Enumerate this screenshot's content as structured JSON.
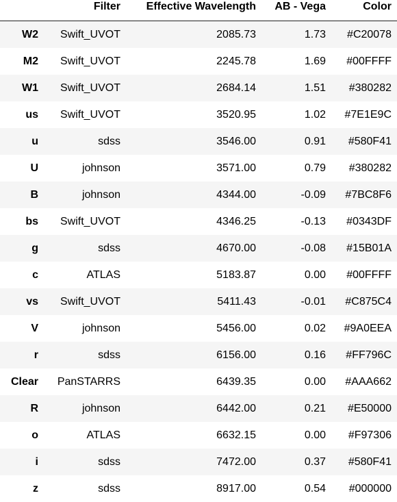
{
  "columns": [
    "",
    "Filter",
    "Effective Wavelength",
    "AB - Vega",
    "Color"
  ],
  "rows": [
    {
      "index": "W2",
      "filter": "Swift_UVOT",
      "wavelength": "2085.73",
      "ab_vega": "1.73",
      "color": "#C20078"
    },
    {
      "index": "M2",
      "filter": "Swift_UVOT",
      "wavelength": "2245.78",
      "ab_vega": "1.69",
      "color": "#00FFFF"
    },
    {
      "index": "W1",
      "filter": "Swift_UVOT",
      "wavelength": "2684.14",
      "ab_vega": "1.51",
      "color": "#380282"
    },
    {
      "index": "us",
      "filter": "Swift_UVOT",
      "wavelength": "3520.95",
      "ab_vega": "1.02",
      "color": "#7E1E9C"
    },
    {
      "index": "u",
      "filter": "sdss",
      "wavelength": "3546.00",
      "ab_vega": "0.91",
      "color": "#580F41"
    },
    {
      "index": "U",
      "filter": "johnson",
      "wavelength": "3571.00",
      "ab_vega": "0.79",
      "color": "#380282"
    },
    {
      "index": "B",
      "filter": "johnson",
      "wavelength": "4344.00",
      "ab_vega": "-0.09",
      "color": "#7BC8F6"
    },
    {
      "index": "bs",
      "filter": "Swift_UVOT",
      "wavelength": "4346.25",
      "ab_vega": "-0.13",
      "color": "#0343DF"
    },
    {
      "index": "g",
      "filter": "sdss",
      "wavelength": "4670.00",
      "ab_vega": "-0.08",
      "color": "#15B01A"
    },
    {
      "index": "c",
      "filter": "ATLAS",
      "wavelength": "5183.87",
      "ab_vega": "0.00",
      "color": "#00FFFF"
    },
    {
      "index": "vs",
      "filter": "Swift_UVOT",
      "wavelength": "5411.43",
      "ab_vega": "-0.01",
      "color": "#C875C4"
    },
    {
      "index": "V",
      "filter": "johnson",
      "wavelength": "5456.00",
      "ab_vega": "0.02",
      "color": "#9A0EEA"
    },
    {
      "index": "r",
      "filter": "sdss",
      "wavelength": "6156.00",
      "ab_vega": "0.16",
      "color": "#FF796C"
    },
    {
      "index": "Clear",
      "filter": "PanSTARRS",
      "wavelength": "6439.35",
      "ab_vega": "0.00",
      "color": "#AAA662"
    },
    {
      "index": "R",
      "filter": "johnson",
      "wavelength": "6442.00",
      "ab_vega": "0.21",
      "color": "#E50000"
    },
    {
      "index": "o",
      "filter": "ATLAS",
      "wavelength": "6632.15",
      "ab_vega": "0.00",
      "color": "#F97306"
    },
    {
      "index": "i",
      "filter": "sdss",
      "wavelength": "7472.00",
      "ab_vega": "0.37",
      "color": "#580F41"
    },
    {
      "index": "z",
      "filter": "sdss",
      "wavelength": "8917.00",
      "ab_vega": "0.54",
      "color": "#000000"
    }
  ]
}
